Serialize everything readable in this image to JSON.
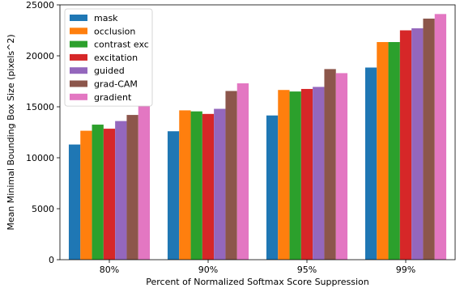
{
  "chart_data": {
    "type": "bar",
    "xlabel": "Percent of Normalized Softmax Score Suppression",
    "ylabel": "Mean Minimal Bounding Box Size (pixels^2)",
    "categories": [
      "80%",
      "90%",
      "95%",
      "99%"
    ],
    "ylim": [
      0,
      25000
    ],
    "yticks": [
      0,
      5000,
      10000,
      15000,
      20000,
      25000
    ],
    "legend_position": "top-left",
    "grid": false,
    "series": [
      {
        "name": "mask",
        "color": "#1f77b4",
        "values": [
          11300,
          12600,
          14150,
          18850
        ]
      },
      {
        "name": "occlusion",
        "color": "#ff7f0e",
        "values": [
          12650,
          14650,
          16650,
          21350
        ]
      },
      {
        "name": "contrast exc",
        "color": "#2ca02c",
        "values": [
          13250,
          14550,
          16500,
          21350
        ]
      },
      {
        "name": "excitation",
        "color": "#d62728",
        "values": [
          12850,
          14300,
          16750,
          22500
        ]
      },
      {
        "name": "guided",
        "color": "#9467bd",
        "values": [
          13600,
          14800,
          16950,
          22700
        ]
      },
      {
        "name": "grad-CAM",
        "color": "#8c564b",
        "values": [
          14200,
          16550,
          18700,
          23650
        ]
      },
      {
        "name": "gradient",
        "color": "#e377c2",
        "values": [
          15100,
          17300,
          18300,
          24100
        ]
      }
    ]
  }
}
